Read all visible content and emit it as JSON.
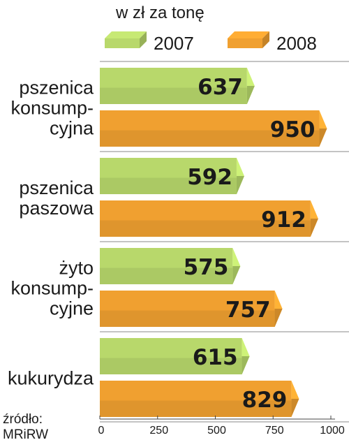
{
  "chart_data": {
    "type": "bar",
    "orientation": "horizontal",
    "unit_label": "w zł za tonę",
    "categories": [
      [
        "pszenica",
        "konsump-",
        "cyjna"
      ],
      [
        "pszenica",
        "paszowa"
      ],
      [
        "żyto",
        "konsump-",
        "cyjne"
      ],
      [
        "kukurydza"
      ]
    ],
    "series": [
      {
        "name": "2007",
        "values": [
          637,
          592,
          575,
          615
        ],
        "color": "#b8d86b"
      },
      {
        "name": "2008",
        "values": [
          950,
          912,
          757,
          829
        ],
        "color": "#f0a030"
      }
    ],
    "xlim": [
      0,
      1000
    ],
    "x_ticks": [
      "0",
      "250",
      "500",
      "750",
      "1000"
    ],
    "legend_position": "top",
    "grid": false,
    "source": [
      "źródło:",
      "MRiRW"
    ]
  }
}
